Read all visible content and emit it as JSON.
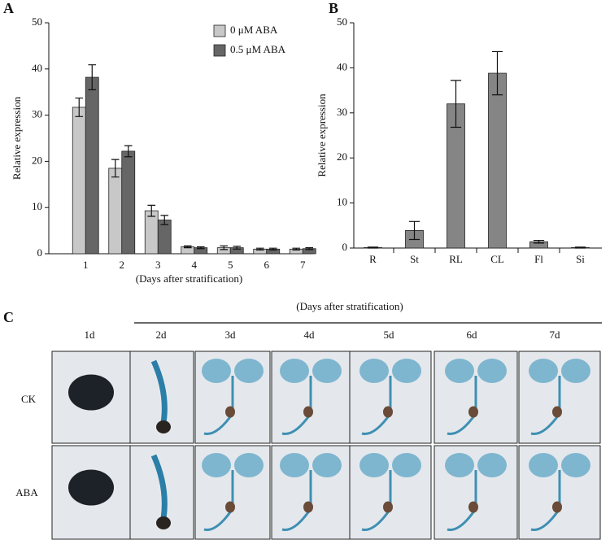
{
  "panel_labels": [
    "A",
    "B",
    "C"
  ],
  "chart_data": [
    {
      "type": "bar",
      "categories": [
        "1",
        "2",
        "3",
        "4",
        "5",
        "6",
        "7"
      ],
      "x_label": "(Days after stratification)",
      "y_label": "Relative expression",
      "ylim": [
        0,
        50
      ],
      "yticks": [
        0,
        10,
        20,
        30,
        40,
        50
      ],
      "legend": "upper right",
      "series": [
        {
          "name": "0  μM ABA",
          "color": "#c8c8c8",
          "values": [
            31.7,
            18.5,
            9.3,
            1.5,
            1.3,
            1.0,
            1.0
          ],
          "errors": [
            2.0,
            1.9,
            1.2,
            0.2,
            0.4,
            0.2,
            0.2
          ]
        },
        {
          "name": "0.5 μM ABA",
          "color": "#666666",
          "values": [
            38.2,
            22.2,
            7.3,
            1.3,
            1.3,
            1.0,
            1.1
          ],
          "errors": [
            2.7,
            1.2,
            1.0,
            0.2,
            0.3,
            0.2,
            0.2
          ]
        }
      ]
    },
    {
      "type": "bar",
      "categories": [
        "R",
        "St",
        "RL",
        "CL",
        "Fl",
        "Si"
      ],
      "y_label": "Relative expression",
      "ylim": [
        0,
        50
      ],
      "yticks": [
        0,
        10,
        20,
        30,
        40,
        50
      ],
      "color": "#858585",
      "values": [
        0.1,
        3.9,
        32.0,
        38.8,
        1.4,
        0.1
      ],
      "errors": [
        0.1,
        2.0,
        5.2,
        4.8,
        0.3,
        0.1
      ]
    }
  ],
  "panel_c": {
    "title": "(Days after stratification)",
    "columns": [
      "1d",
      "2d",
      "3d",
      "4d",
      "5d",
      "6d",
      "7d"
    ],
    "rows": [
      "CK",
      "ABA"
    ]
  }
}
